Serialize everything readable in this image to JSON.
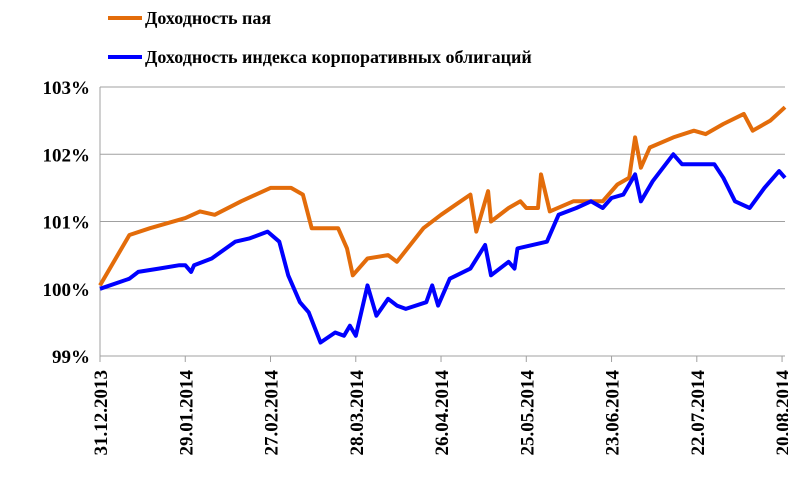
{
  "chart_data": {
    "type": "line",
    "xlim": [
      "31.12.2013",
      "21.08.2014"
    ],
    "xticks": [
      "31.12.2013",
      "29.01.2014",
      "27.02.2014",
      "28.03.2014",
      "26.04.2014",
      "25.05.2014",
      "23.06.2014",
      "22.07.2014",
      "20.08.2014"
    ],
    "ylim": [
      99,
      103
    ],
    "yticks": [
      {
        "value": 99,
        "label": "99%"
      },
      {
        "value": 100,
        "label": "100%"
      },
      {
        "value": 101,
        "label": "101%"
      },
      {
        "value": 102,
        "label": "102%"
      },
      {
        "value": 103,
        "label": "103%"
      }
    ],
    "grid": true,
    "legend": "top",
    "series": [
      {
        "name": "Доходность пая",
        "color": "#e36c0a",
        "x": [
          "31.12.2013",
          "10.01.2014",
          "17.01.2014",
          "29.01.2014",
          "03.02.2014",
          "08.02.2014",
          "17.02.2014",
          "27.02.2014",
          "06.03.2014",
          "10.03.2014",
          "13.03.2014",
          "22.03.2014",
          "25.03.2014",
          "27.03.2014",
          "01.04.2014",
          "08.04.2014",
          "11.04.2014",
          "20.04.2014",
          "26.04.2014",
          "01.05.2014",
          "06.05.2014",
          "08.05.2014",
          "12.05.2014",
          "13.05.2014",
          "19.05.2014",
          "23.05.2014",
          "25.05.2014",
          "29.05.2014",
          "30.05.2014",
          "02.06.2014",
          "10.06.2014",
          "20.06.2014",
          "25.06.2014",
          "29.06.2014",
          "01.07.2014",
          "03.07.2014",
          "06.07.2014",
          "14.07.2014",
          "21.07.2014",
          "25.07.2014",
          "31.07.2014",
          "07.08.2014",
          "10.08.2014",
          "16.08.2014",
          "21.08.2014"
        ],
        "values": [
          100.05,
          100.8,
          100.9,
          101.05,
          101.15,
          101.1,
          101.3,
          101.5,
          101.5,
          101.4,
          100.9,
          100.9,
          100.6,
          100.2,
          100.45,
          100.5,
          100.4,
          100.9,
          101.1,
          101.25,
          101.4,
          100.85,
          101.45,
          101.0,
          101.2,
          101.3,
          101.2,
          101.2,
          101.7,
          101.15,
          101.3,
          101.3,
          101.55,
          101.65,
          102.25,
          101.8,
          102.1,
          102.25,
          102.35,
          102.3,
          102.45,
          102.6,
          102.35,
          102.5,
          102.7
        ]
      },
      {
        "name": "Доходность индекса корпоративных облигаций",
        "color": "#0000ff",
        "x": [
          "31.12.2013",
          "10.01.2014",
          "13.01.2014",
          "20.01.2014",
          "27.01.2014",
          "29.01.2014",
          "31.01.2014",
          "01.02.2014",
          "07.02.2014",
          "15.02.2014",
          "20.02.2014",
          "26.02.2014",
          "02.03.2014",
          "05.03.2014",
          "09.03.2014",
          "12.03.2014",
          "16.03.2014",
          "21.03.2014",
          "24.03.2014",
          "26.03.2014",
          "28.03.2014",
          "01.04.2014",
          "04.04.2014",
          "08.04.2014",
          "11.04.2014",
          "14.04.2014",
          "21.04.2014",
          "23.04.2014",
          "25.04.2014",
          "29.04.2014",
          "06.05.2014",
          "11.05.2014",
          "13.05.2014",
          "19.05.2014",
          "21.05.2014",
          "22.05.2014",
          "01.06.2014",
          "05.06.2014",
          "11.06.2014",
          "16.06.2014",
          "20.06.2014",
          "23.06.2014",
          "27.06.2014",
          "01.07.2014",
          "03.07.2014",
          "07.07.2014",
          "14.07.2014",
          "17.07.2014",
          "28.07.2014",
          "31.07.2014",
          "04.08.2014",
          "09.08.2014",
          "14.08.2014",
          "19.08.2014",
          "21.08.2014"
        ],
        "values": [
          100.0,
          100.15,
          100.25,
          100.3,
          100.35,
          100.35,
          100.25,
          100.35,
          100.45,
          100.7,
          100.75,
          100.85,
          100.7,
          100.2,
          99.8,
          99.65,
          99.2,
          99.35,
          99.3,
          99.45,
          99.3,
          100.05,
          99.6,
          99.85,
          99.75,
          99.7,
          99.8,
          100.05,
          99.75,
          100.15,
          100.3,
          100.65,
          100.2,
          100.4,
          100.3,
          100.6,
          100.7,
          101.1,
          101.2,
          101.3,
          101.2,
          101.35,
          101.4,
          101.7,
          101.3,
          101.6,
          102.0,
          101.85,
          101.85,
          101.65,
          101.3,
          101.2,
          101.5,
          101.75,
          101.65
        ]
      }
    ]
  }
}
